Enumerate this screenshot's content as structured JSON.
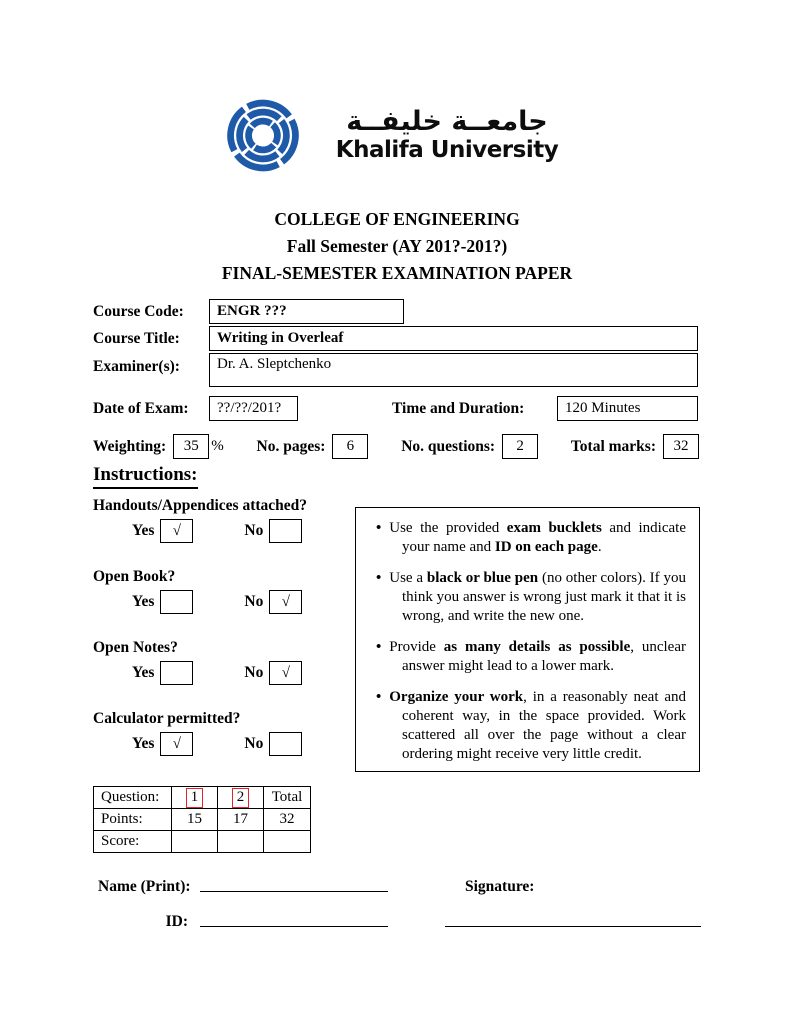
{
  "logo": {
    "arabic_name": "جامعــة خليفــة",
    "english_name": "Khalifa University",
    "mark_color": "#1f5aa9"
  },
  "header": {
    "college": "COLLEGE OF ENGINEERING",
    "semester": "Fall Semester (AY 201?-201?)",
    "paper_type": "FINAL-SEMESTER EXAMINATION PAPER"
  },
  "course": {
    "code_label": "Course Code:",
    "code_value": "ENGR ???",
    "title_label": "Course Title:",
    "title_value": "Writing in Overleaf",
    "examiner_label": "Examiner(s):",
    "examiner_value": "Dr. A. Sleptchenko"
  },
  "meta": {
    "date_label": "Date of Exam:",
    "date_value": "??/??/201?",
    "time_label": "Time and Duration:",
    "time_value": "120 Minutes",
    "weighting_label": "Weighting:",
    "weighting_value": "35",
    "weighting_unit": "%",
    "pages_label": "No. pages:",
    "pages_value": "6",
    "questions_label": "No. questions:",
    "questions_value": "2",
    "marks_label": "Total marks:",
    "marks_value": "32"
  },
  "instructions": {
    "heading": "Instructions:",
    "yes_label": "Yes",
    "no_label": "No",
    "check_glyph": "√",
    "questions": [
      {
        "label": "Handouts/Appendices attached?",
        "yes": true,
        "no": false
      },
      {
        "label": "Open Book?",
        "yes": false,
        "no": true
      },
      {
        "label": "Open Notes?",
        "yes": false,
        "no": true
      },
      {
        "label": "Calculator permitted?",
        "yes": true,
        "no": false
      }
    ],
    "bullets": [
      {
        "segments": [
          {
            "t": "Use the provided ",
            "b": false
          },
          {
            "t": "exam bucklets",
            "b": true
          },
          {
            "t": " and indicate your name and ",
            "b": false
          },
          {
            "t": "ID on each page",
            "b": true
          },
          {
            "t": ".",
            "b": false
          }
        ]
      },
      {
        "segments": [
          {
            "t": "Use a ",
            "b": false
          },
          {
            "t": "black or blue pen",
            "b": true
          },
          {
            "t": " (no other colors). If you think you answer is wrong just mark it that it is wrong, and write the new one.",
            "b": false
          }
        ]
      },
      {
        "segments": [
          {
            "t": "Provide ",
            "b": false
          },
          {
            "t": "as many details as possible",
            "b": true
          },
          {
            "t": ", unclear answer might lead to a lower mark.",
            "b": false
          }
        ]
      },
      {
        "segments": [
          {
            "t": "Organize your work",
            "b": true
          },
          {
            "t": ", in a reasonably neat and coherent way, in the space provided. Work scattered all over the page without a clear ordering might receive very little credit.",
            "b": false
          }
        ]
      }
    ]
  },
  "score_table": {
    "link_border_color": "#e0262b",
    "rows": [
      {
        "cells": [
          {
            "text": "Question:"
          },
          {
            "text": "1",
            "linked": true
          },
          {
            "text": "2",
            "linked": true
          },
          {
            "text": "Total"
          }
        ]
      },
      {
        "cells": [
          {
            "text": "Points:"
          },
          {
            "text": "15"
          },
          {
            "text": "17"
          },
          {
            "text": "32"
          }
        ]
      },
      {
        "cells": [
          {
            "text": "Score:"
          },
          {
            "text": ""
          },
          {
            "text": ""
          },
          {
            "text": ""
          }
        ]
      }
    ]
  },
  "footer": {
    "name_label": "Name (Print):",
    "signature_label": "Signature:",
    "id_label": "ID:"
  }
}
